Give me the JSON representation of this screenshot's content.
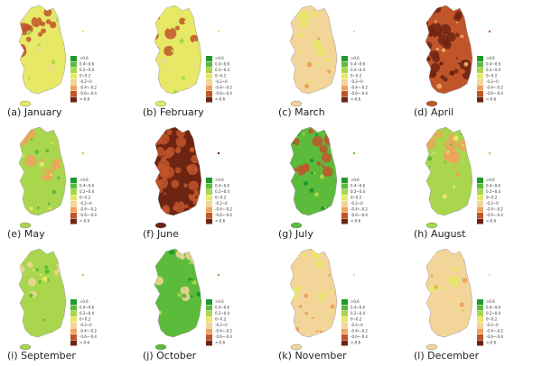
{
  "panels": [
    {
      "caption": "(a)  January"
    },
    {
      "caption": "(b)  February"
    },
    {
      "caption": "(c)  March"
    },
    {
      "caption": "(d)  April"
    },
    {
      "caption": "(e)  May"
    },
    {
      "caption": "(f)  June"
    },
    {
      "caption": "(g)  July"
    },
    {
      "caption": "(h)  August"
    },
    {
      "caption": "(i)  September"
    },
    {
      "caption": "(j)  October"
    },
    {
      "caption": "(k)  November"
    },
    {
      "caption": "(l)  December"
    }
  ],
  "legend": [
    {
      "label": ">0.6",
      "color": "#1f9a2e"
    },
    {
      "label": "0.4~0.6",
      "color": "#5dbb3c"
    },
    {
      "label": "0.2~0.4",
      "color": "#a9d64c"
    },
    {
      "label": "0~0.2",
      "color": "#e6e866"
    },
    {
      "label": "-0.2~0",
      "color": "#f3d59a"
    },
    {
      "label": "-0.4~-0.2",
      "color": "#eda45a"
    },
    {
      "label": "-0.6~-0.4",
      "color": "#c0552a"
    },
    {
      "label": "<-0.6",
      "color": "#6e2412"
    }
  ]
}
